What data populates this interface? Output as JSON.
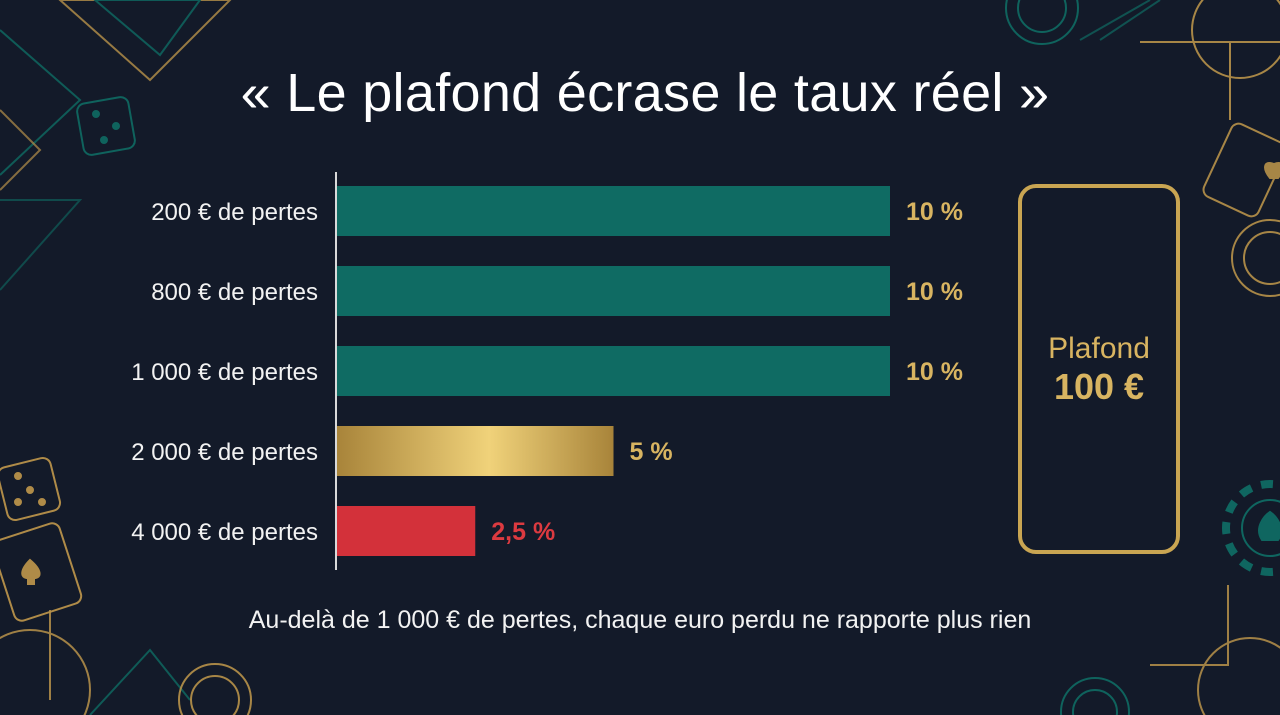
{
  "title": "« Le plafond écrase le taux réel »",
  "footnote": "Au-delà de 1 000 € de pertes, chaque euro perdu ne rapporte plus rien",
  "cap": {
    "label": "Plafond",
    "value": "100 €"
  },
  "colors": {
    "background": "#131a29",
    "teal": "#0f6b63",
    "gold": "#c9a552",
    "red": "#d3313a",
    "value_label_gold": "#d8b461",
    "value_label_red": "#dc3a40"
  },
  "chart_data": {
    "type": "bar",
    "orientation": "horizontal",
    "categories": [
      "200 € de pertes",
      "800 € de pertes",
      "1 000 € de pertes",
      "2 000 € de pertes",
      "4 000 € de pertes"
    ],
    "values": [
      10,
      10,
      10,
      5,
      2.5
    ],
    "value_labels": [
      "10 %",
      "10 %",
      "10 %",
      "5 %",
      "2,5 %"
    ],
    "bar_colors": [
      "teal",
      "teal",
      "teal",
      "gold",
      "red"
    ],
    "xlim": [
      0,
      10
    ],
    "grid": false,
    "legend": "none"
  }
}
